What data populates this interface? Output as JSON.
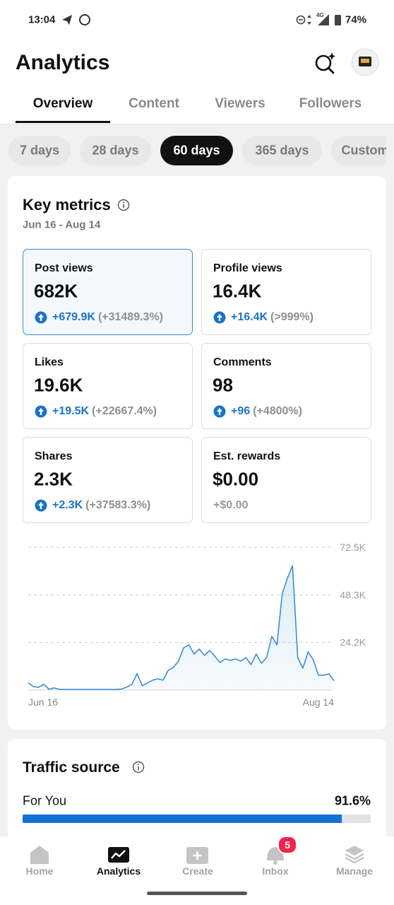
{
  "status_bar": {
    "time": "13:04",
    "network": "4G",
    "battery": "74%"
  },
  "header": {
    "title": "Analytics"
  },
  "tabs": [
    "Overview",
    "Content",
    "Viewers",
    "Followers"
  ],
  "periods": [
    "7 days",
    "28 days",
    "60 days",
    "365 days",
    "Custom"
  ],
  "key_metrics": {
    "title": "Key metrics",
    "date_range": "Jun 16 - Aug 14",
    "tiles": [
      {
        "label": "Post views",
        "value": "682K",
        "change": "+679.9K",
        "percent": "(+31489.3%)"
      },
      {
        "label": "Profile views",
        "value": "16.4K",
        "change": "+16.4K",
        "percent": "(>999%)"
      },
      {
        "label": "Likes",
        "value": "19.6K",
        "change": "+19.5K",
        "percent": "(+22667.4%)"
      },
      {
        "label": "Comments",
        "value": "98",
        "change": "+96",
        "percent": "(+4800%)"
      },
      {
        "label": "Shares",
        "value": "2.3K",
        "change": "+2.3K",
        "percent": "(+37583.3%)"
      },
      {
        "label": "Est. rewards",
        "value": "$0.00",
        "change": "+$0.00"
      }
    ]
  },
  "chart_data": {
    "type": "area",
    "color": "#3a8fd6",
    "x": [
      "Jun 16",
      null,
      null,
      null,
      null,
      null,
      null,
      null,
      null,
      null,
      null,
      null,
      null,
      null,
      null,
      null,
      null,
      null,
      null,
      null,
      null,
      null,
      null,
      null,
      null,
      null,
      null,
      null,
      null,
      null,
      null,
      null,
      null,
      null,
      null,
      null,
      null,
      null,
      null,
      null,
      null,
      null,
      null,
      null,
      null,
      null,
      null,
      null,
      null,
      null,
      null,
      null,
      null,
      null,
      null,
      null,
      null,
      null,
      null,
      "Aug 14"
    ],
    "values": [
      3600,
      1800,
      1400,
      2900,
      400,
      1100,
      400,
      300,
      300,
      300,
      300,
      300,
      300,
      300,
      300,
      300,
      300,
      300,
      500,
      1500,
      2900,
      8300,
      2200,
      3600,
      5000,
      5700,
      5000,
      10000,
      11500,
      14700,
      21500,
      23000,
      18300,
      20800,
      17600,
      20100,
      17200,
      14000,
      15800,
      15100,
      15800,
      14700,
      16500,
      12900,
      18300,
      13600,
      16500,
      27300,
      23000,
      48800,
      56700,
      63200,
      16500,
      11100,
      19400,
      15400,
      7500,
      7500,
      8300,
      4700
    ],
    "ylim": [
      0,
      72500
    ],
    "yticks": [
      {
        "value": 24167,
        "label": "24.2K"
      },
      {
        "value": 48333,
        "label": "48.3K"
      },
      {
        "value": 72500,
        "label": "72.5K"
      }
    ],
    "grid": true
  },
  "traffic_source": {
    "title": "Traffic source",
    "items": [
      {
        "name": "For You",
        "value": 91.6,
        "value_label": "91.6%"
      }
    ]
  },
  "nav": {
    "items": [
      "Home",
      "Analytics",
      "Create",
      "Inbox",
      "Manage"
    ],
    "inbox_badge": "5"
  }
}
